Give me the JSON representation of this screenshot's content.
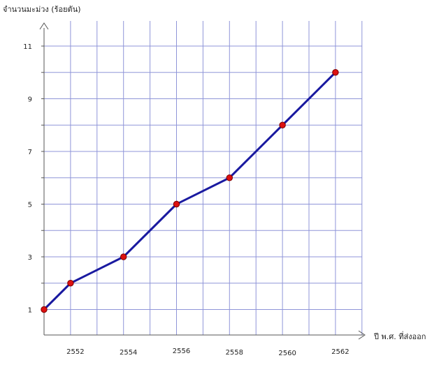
{
  "chart_data": {
    "type": "line",
    "title": "",
    "ylabel": "จำนวนมะม่วง (ร้อยตัน)",
    "xlabel": "ปี พ.ศ. ที่ส่งออก",
    "x": [
      2551,
      2552,
      2554,
      2556,
      2558,
      2560,
      2562
    ],
    "series": [
      {
        "values": [
          1,
          2,
          3,
          5,
          6,
          8,
          10
        ]
      }
    ],
    "x_tick_labels": [
      "2552",
      "2554",
      "2556",
      "2558",
      "2560",
      "2562"
    ],
    "y_tick_labels": [
      "1",
      "3",
      "5",
      "7",
      "9",
      "11"
    ],
    "xlim": [
      2551,
      2563
    ],
    "ylim": [
      0.5,
      11.5
    ],
    "grid": true,
    "colors": {
      "line": "#1a1aa0",
      "marker_fill": "#dd1111",
      "marker_stroke": "#7a0000",
      "grid": "#8f95d8",
      "axis": "#555555"
    }
  }
}
